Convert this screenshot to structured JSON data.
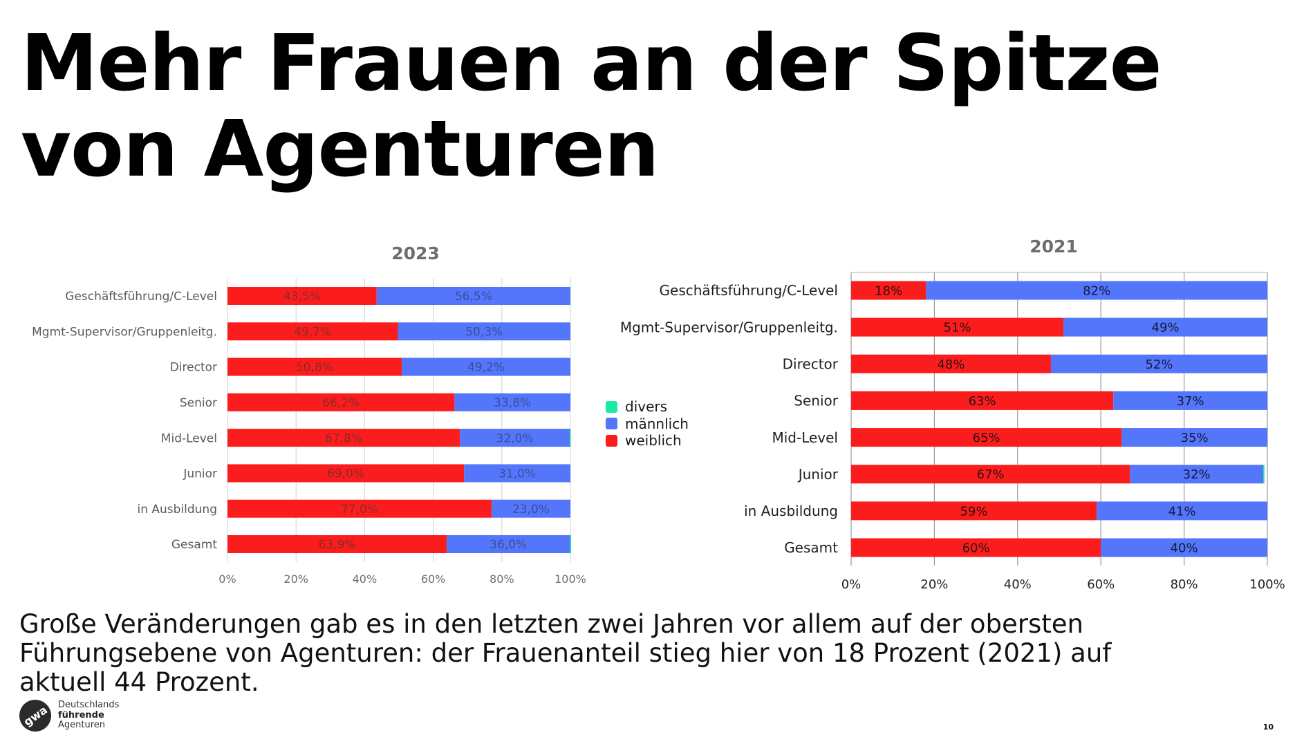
{
  "slide": {
    "title_lines": [
      "Mehr Frauen an der Spitze",
      "von Agenturen"
    ],
    "body_lines": [
      "Große Veränderungen gab es in den letzten zwei Jahren vor allem auf der obersten",
      "Führungsebene von Agenturen: der Frauenanteil stieg hier von 18 Prozent (2021) auf",
      "aktuell 44 Prozent."
    ],
    "page_number": "10",
    "logo": {
      "mark": "gwa",
      "line1": "Deutschlands",
      "line2": "führende",
      "line3": "Agenturen"
    }
  },
  "legend": {
    "items": [
      {
        "label": "divers",
        "color": "#1de9a0"
      },
      {
        "label": "männlich",
        "color": "#5476fb"
      },
      {
        "label": "weiblich",
        "color": "#fb1d1d"
      }
    ]
  },
  "chart_data": [
    {
      "type": "bar",
      "orientation": "horizontal",
      "stacked": true,
      "title": "2023",
      "xlabel": "",
      "ylabel": "",
      "xlim": [
        0,
        100
      ],
      "x_ticks": [
        "0%",
        "20%",
        "40%",
        "60%",
        "80%",
        "100%"
      ],
      "grid": "vertical",
      "legend": "right-middle",
      "categories": [
        "Geschäftsführung/C-Level",
        "Mgmt-Supervisor/Gruppenleitg.",
        "Director",
        "Senior",
        "Mid-Level",
        "Junior",
        "in Ausbildung",
        "Gesamt"
      ],
      "series": [
        {
          "name": "weiblich",
          "color": "#fb1d1d",
          "values": [
            43.5,
            49.7,
            50.8,
            66.2,
            67.8,
            69.0,
            77.0,
            63.9
          ],
          "labels": [
            "43,5%",
            "49,7%",
            "50,8%",
            "66,2%",
            "67,8%",
            "69,0%",
            "77,0%",
            "63,9%"
          ]
        },
        {
          "name": "männlich",
          "color": "#5476fb",
          "values": [
            56.5,
            50.3,
            49.2,
            33.8,
            32.0,
            31.0,
            23.0,
            36.0
          ],
          "labels": [
            "56,5%",
            "50,3%",
            "49,2%",
            "33,8%",
            "32,0%",
            "31,0%",
            "23,0%",
            "36,0%"
          ]
        },
        {
          "name": "divers",
          "color": "#1de9a0",
          "values": [
            0,
            0,
            0,
            0,
            0.2,
            0,
            0,
            0.1
          ],
          "labels": [
            "",
            "",
            "",
            "",
            "",
            "",
            "",
            ""
          ]
        }
      ]
    },
    {
      "type": "bar",
      "orientation": "horizontal",
      "stacked": true,
      "title": "2021",
      "xlabel": "",
      "ylabel": "",
      "xlim": [
        0,
        100
      ],
      "x_ticks": [
        "0%",
        "20%",
        "40%",
        "60%",
        "80%",
        "100%"
      ],
      "grid": "vertical",
      "legend": "left-middle",
      "categories": [
        "Geschäftsführung/C-Level",
        "Mgmt-Supervisor/Gruppenleitg.",
        "Director",
        "Senior",
        "Mid-Level",
        "Junior",
        "in Ausbildung",
        "Gesamt"
      ],
      "series": [
        {
          "name": "weiblich",
          "color": "#fb1d1d",
          "values": [
            18,
            51,
            48,
            63,
            65,
            67,
            59,
            60
          ],
          "labels": [
            "18%",
            "51%",
            "48%",
            "63%",
            "65%",
            "67%",
            "59%",
            "60%"
          ]
        },
        {
          "name": "männlich",
          "color": "#5476fb",
          "values": [
            82,
            49,
            52,
            37,
            35,
            32,
            41,
            40
          ],
          "labels": [
            "82%",
            "49%",
            "52%",
            "37%",
            "35%",
            "32%",
            "41%",
            "40%"
          ]
        },
        {
          "name": "divers",
          "color": "#1de9a0",
          "values": [
            0,
            0,
            0,
            0,
            0,
            0.3,
            0,
            0
          ],
          "labels": [
            "",
            "",
            "",
            "",
            "",
            "",
            "",
            ""
          ]
        }
      ]
    }
  ]
}
